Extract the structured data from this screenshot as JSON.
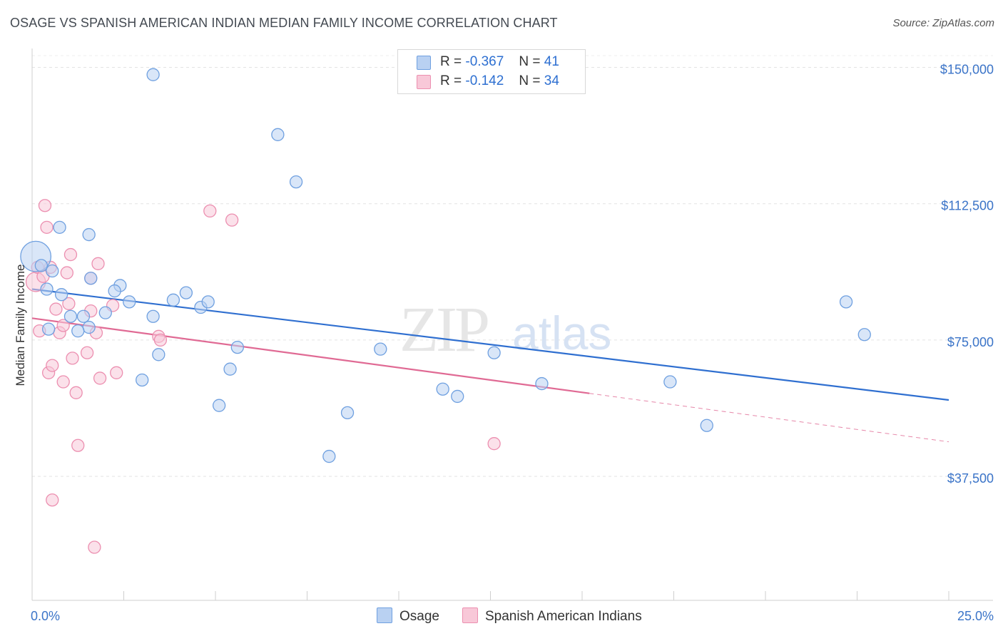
{
  "title": "OSAGE VS SPANISH AMERICAN INDIAN MEDIAN FAMILY INCOME CORRELATION CHART",
  "source": "Source: ZipAtlas.com",
  "watermark": {
    "zip": "ZIP",
    "atlas": "atlas"
  },
  "colors": {
    "osage": "#6fa0e0",
    "osage_fill": "#b9d1f2",
    "osage_line": "#2f6fd0",
    "spanish": "#ec8fb0",
    "spanish_fill": "#f8c8d8",
    "spanish_line": "#e06a94",
    "tick_label": "#3b74c8"
  },
  "legend": {
    "r_label": "R =",
    "n_label": "N =",
    "rows": [
      {
        "r": "-0.367",
        "n": "41"
      },
      {
        "r": "-0.142",
        "n": "34"
      }
    ]
  },
  "bottom_legend": {
    "osage": "Osage",
    "spanish": "Spanish American Indians"
  },
  "chart_data": {
    "type": "scatter",
    "title": "OSAGE VS SPANISH AMERICAN INDIAN MEDIAN FAMILY INCOME CORRELATION CHART",
    "xlabel": "",
    "ylabel": "Median Family Income",
    "xlim": [
      0,
      25
    ],
    "ylim": [
      0,
      155000
    ],
    "x_tick_labels": [
      "0.0%",
      "25.0%"
    ],
    "y_ticks": [
      37500,
      75000,
      112500,
      150000
    ],
    "y_tick_labels": [
      "$37,500",
      "$75,000",
      "$112,500",
      "$150,000"
    ],
    "grid": true,
    "series": [
      {
        "name": "Osage",
        "r": -0.367,
        "n": 41,
        "trend": {
          "x0": 0,
          "y0": 89000,
          "x1": 25,
          "y1": 58500,
          "solid_until": 25
        },
        "points": [
          [
            0.1,
            98000,
            2.5
          ],
          [
            0.25,
            95500,
            1
          ],
          [
            0.55,
            94000,
            1
          ],
          [
            0.4,
            89000,
            1
          ],
          [
            0.8,
            87500,
            1
          ],
          [
            0.75,
            106000,
            1
          ],
          [
            0.45,
            78000,
            1
          ],
          [
            1.05,
            81500,
            1
          ],
          [
            1.4,
            81500,
            1
          ],
          [
            1.55,
            78500,
            1
          ],
          [
            1.25,
            77500,
            1
          ],
          [
            1.55,
            104000,
            1
          ],
          [
            1.6,
            92000,
            1
          ],
          [
            2.4,
            90000,
            1
          ],
          [
            2.25,
            88500,
            1
          ],
          [
            2.65,
            85500,
            1
          ],
          [
            3.3,
            81500,
            1
          ],
          [
            3.45,
            71000,
            1
          ],
          [
            3.0,
            64000,
            1
          ],
          [
            3.3,
            148000,
            1
          ],
          [
            3.85,
            86000,
            1
          ],
          [
            4.2,
            88000,
            1
          ],
          [
            4.6,
            84000,
            1
          ],
          [
            4.8,
            85500,
            1
          ],
          [
            5.1,
            57000,
            1
          ],
          [
            5.4,
            67000,
            1
          ],
          [
            5.6,
            73000,
            1
          ],
          [
            6.7,
            131500,
            1
          ],
          [
            7.2,
            118500,
            1
          ],
          [
            8.1,
            43000,
            1
          ],
          [
            8.6,
            55000,
            1
          ],
          [
            9.5,
            72500,
            1
          ],
          [
            11.2,
            61500,
            1
          ],
          [
            11.6,
            59500,
            1
          ],
          [
            12.6,
            71500,
            1
          ],
          [
            13.9,
            63000,
            1
          ],
          [
            17.4,
            63500,
            1
          ],
          [
            18.4,
            51500,
            1
          ],
          [
            22.2,
            85500,
            1
          ],
          [
            22.7,
            76500,
            1
          ],
          [
            2.0,
            82500,
            1
          ]
        ]
      },
      {
        "name": "Spanish American Indians",
        "r": -0.142,
        "n": 34,
        "trend": {
          "x0": 0,
          "y0": 81000,
          "x1": 25,
          "y1": 47000,
          "solid_until": 15.2
        },
        "points": [
          [
            0.1,
            91000,
            1.6
          ],
          [
            0.15,
            95000,
            1
          ],
          [
            0.2,
            77500,
            1
          ],
          [
            0.35,
            112000,
            1
          ],
          [
            0.4,
            106000,
            1
          ],
          [
            0.5,
            95000,
            1
          ],
          [
            0.45,
            66000,
            1
          ],
          [
            0.55,
            68000,
            1
          ],
          [
            0.65,
            83500,
            1
          ],
          [
            0.75,
            77000,
            1
          ],
          [
            0.85,
            79000,
            1
          ],
          [
            0.85,
            63500,
            1
          ],
          [
            0.95,
            93500,
            1
          ],
          [
            1.0,
            85000,
            1
          ],
          [
            1.05,
            98500,
            1
          ],
          [
            1.1,
            70000,
            1
          ],
          [
            1.2,
            60500,
            1
          ],
          [
            1.25,
            46000,
            1
          ],
          [
            1.5,
            71500,
            1
          ],
          [
            1.6,
            83000,
            1
          ],
          [
            1.6,
            92000,
            1
          ],
          [
            1.75,
            77000,
            1
          ],
          [
            1.8,
            96000,
            1
          ],
          [
            1.85,
            64500,
            1
          ],
          [
            2.2,
            84500,
            1
          ],
          [
            2.3,
            66000,
            1
          ],
          [
            0.55,
            31000,
            1
          ],
          [
            1.7,
            18000,
            1
          ],
          [
            3.45,
            76000,
            1
          ],
          [
            3.5,
            75000,
            1
          ],
          [
            4.85,
            110500,
            1
          ],
          [
            5.45,
            108000,
            1
          ],
          [
            12.6,
            46500,
            1
          ],
          [
            0.3,
            92500,
            1
          ]
        ]
      }
    ]
  }
}
